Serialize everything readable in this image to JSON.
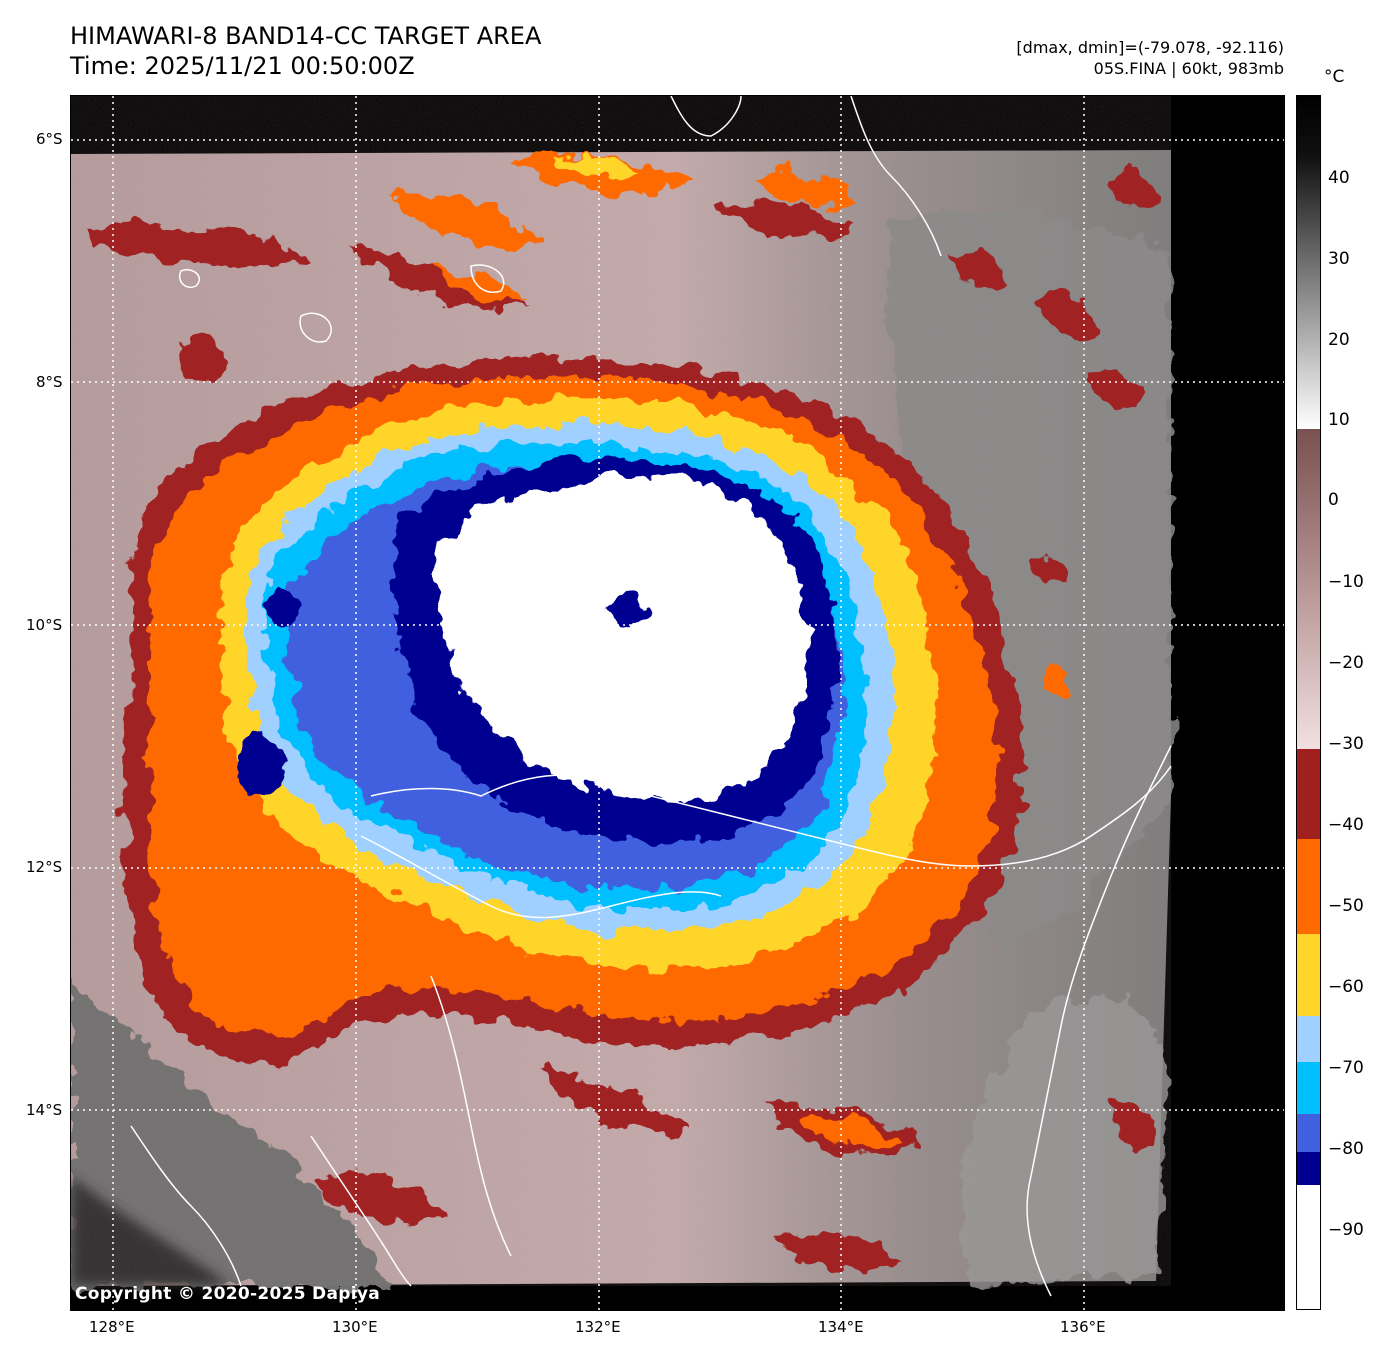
{
  "header": {
    "title_line1": "HIMAWARI-8 BAND14-CC TARGET AREA",
    "title_line2": "Time: 2025/11/21 00:50:00Z",
    "info_line1": "[dmax, dmin]=(-79.078, -92.116)",
    "info_line2": "05S.FINA | 60kt, 983mb"
  },
  "map": {
    "lat_labels": [
      "6°S",
      "8°S",
      "10°S",
      "12°S",
      "14°S"
    ],
    "lon_labels": [
      "128°E",
      "130°E",
      "132°E",
      "134°E",
      "136°E"
    ],
    "copyright": "Copyright © 2020-2025 Dapiya"
  },
  "colorbar": {
    "unit": "°C",
    "tick_labels": [
      "40",
      "30",
      "20",
      "10",
      "0",
      "−10",
      "−20",
      "−30",
      "−40",
      "−50",
      "−60",
      "−70",
      "−80",
      "−90"
    ],
    "colors": {
      "warm_black": "#000000",
      "gray_mid": "#808080",
      "white_10": "#ffffff",
      "brown_0": "#8a6060",
      "pink_minus30": "#f0dcdc",
      "dark_red": "#a02020",
      "orange": "#ff6a00",
      "yellow": "#ffd52a",
      "light_blue": "#a0d0ff",
      "cyan": "#00bfff",
      "royal_blue": "#4060e0",
      "navy": "#000090",
      "white_cold": "#ffffff"
    }
  }
}
